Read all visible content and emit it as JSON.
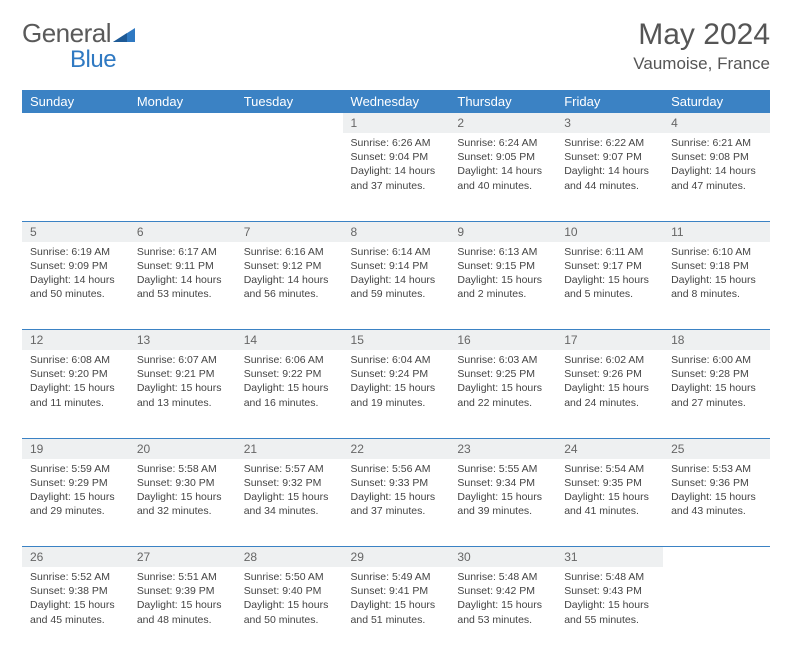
{
  "brand": {
    "text1": "General",
    "text2": "Blue"
  },
  "title": "May 2024",
  "location": "Vaumoise, France",
  "colors": {
    "header_bg": "#3b82c4",
    "daynum_bg": "#eef0f1",
    "text": "#444444",
    "logo_blue": "#2f79c2"
  },
  "dow": [
    "Sunday",
    "Monday",
    "Tuesday",
    "Wednesday",
    "Thursday",
    "Friday",
    "Saturday"
  ],
  "weeks": [
    [
      null,
      null,
      null,
      {
        "n": "1",
        "sr": "6:26 AM",
        "ss": "9:04 PM",
        "dl": "14 hours and 37 minutes."
      },
      {
        "n": "2",
        "sr": "6:24 AM",
        "ss": "9:05 PM",
        "dl": "14 hours and 40 minutes."
      },
      {
        "n": "3",
        "sr": "6:22 AM",
        "ss": "9:07 PM",
        "dl": "14 hours and 44 minutes."
      },
      {
        "n": "4",
        "sr": "6:21 AM",
        "ss": "9:08 PM",
        "dl": "14 hours and 47 minutes."
      }
    ],
    [
      {
        "n": "5",
        "sr": "6:19 AM",
        "ss": "9:09 PM",
        "dl": "14 hours and 50 minutes."
      },
      {
        "n": "6",
        "sr": "6:17 AM",
        "ss": "9:11 PM",
        "dl": "14 hours and 53 minutes."
      },
      {
        "n": "7",
        "sr": "6:16 AM",
        "ss": "9:12 PM",
        "dl": "14 hours and 56 minutes."
      },
      {
        "n": "8",
        "sr": "6:14 AM",
        "ss": "9:14 PM",
        "dl": "14 hours and 59 minutes."
      },
      {
        "n": "9",
        "sr": "6:13 AM",
        "ss": "9:15 PM",
        "dl": "15 hours and 2 minutes."
      },
      {
        "n": "10",
        "sr": "6:11 AM",
        "ss": "9:17 PM",
        "dl": "15 hours and 5 minutes."
      },
      {
        "n": "11",
        "sr": "6:10 AM",
        "ss": "9:18 PM",
        "dl": "15 hours and 8 minutes."
      }
    ],
    [
      {
        "n": "12",
        "sr": "6:08 AM",
        "ss": "9:20 PM",
        "dl": "15 hours and 11 minutes."
      },
      {
        "n": "13",
        "sr": "6:07 AM",
        "ss": "9:21 PM",
        "dl": "15 hours and 13 minutes."
      },
      {
        "n": "14",
        "sr": "6:06 AM",
        "ss": "9:22 PM",
        "dl": "15 hours and 16 minutes."
      },
      {
        "n": "15",
        "sr": "6:04 AM",
        "ss": "9:24 PM",
        "dl": "15 hours and 19 minutes."
      },
      {
        "n": "16",
        "sr": "6:03 AM",
        "ss": "9:25 PM",
        "dl": "15 hours and 22 minutes."
      },
      {
        "n": "17",
        "sr": "6:02 AM",
        "ss": "9:26 PM",
        "dl": "15 hours and 24 minutes."
      },
      {
        "n": "18",
        "sr": "6:00 AM",
        "ss": "9:28 PM",
        "dl": "15 hours and 27 minutes."
      }
    ],
    [
      {
        "n": "19",
        "sr": "5:59 AM",
        "ss": "9:29 PM",
        "dl": "15 hours and 29 minutes."
      },
      {
        "n": "20",
        "sr": "5:58 AM",
        "ss": "9:30 PM",
        "dl": "15 hours and 32 minutes."
      },
      {
        "n": "21",
        "sr": "5:57 AM",
        "ss": "9:32 PM",
        "dl": "15 hours and 34 minutes."
      },
      {
        "n": "22",
        "sr": "5:56 AM",
        "ss": "9:33 PM",
        "dl": "15 hours and 37 minutes."
      },
      {
        "n": "23",
        "sr": "5:55 AM",
        "ss": "9:34 PM",
        "dl": "15 hours and 39 minutes."
      },
      {
        "n": "24",
        "sr": "5:54 AM",
        "ss": "9:35 PM",
        "dl": "15 hours and 41 minutes."
      },
      {
        "n": "25",
        "sr": "5:53 AM",
        "ss": "9:36 PM",
        "dl": "15 hours and 43 minutes."
      }
    ],
    [
      {
        "n": "26",
        "sr": "5:52 AM",
        "ss": "9:38 PM",
        "dl": "15 hours and 45 minutes."
      },
      {
        "n": "27",
        "sr": "5:51 AM",
        "ss": "9:39 PM",
        "dl": "15 hours and 48 minutes."
      },
      {
        "n": "28",
        "sr": "5:50 AM",
        "ss": "9:40 PM",
        "dl": "15 hours and 50 minutes."
      },
      {
        "n": "29",
        "sr": "5:49 AM",
        "ss": "9:41 PM",
        "dl": "15 hours and 51 minutes."
      },
      {
        "n": "30",
        "sr": "5:48 AM",
        "ss": "9:42 PM",
        "dl": "15 hours and 53 minutes."
      },
      {
        "n": "31",
        "sr": "5:48 AM",
        "ss": "9:43 PM",
        "dl": "15 hours and 55 minutes."
      },
      null
    ]
  ],
  "labels": {
    "sunrise": "Sunrise:",
    "sunset": "Sunset:",
    "daylight": "Daylight:"
  }
}
